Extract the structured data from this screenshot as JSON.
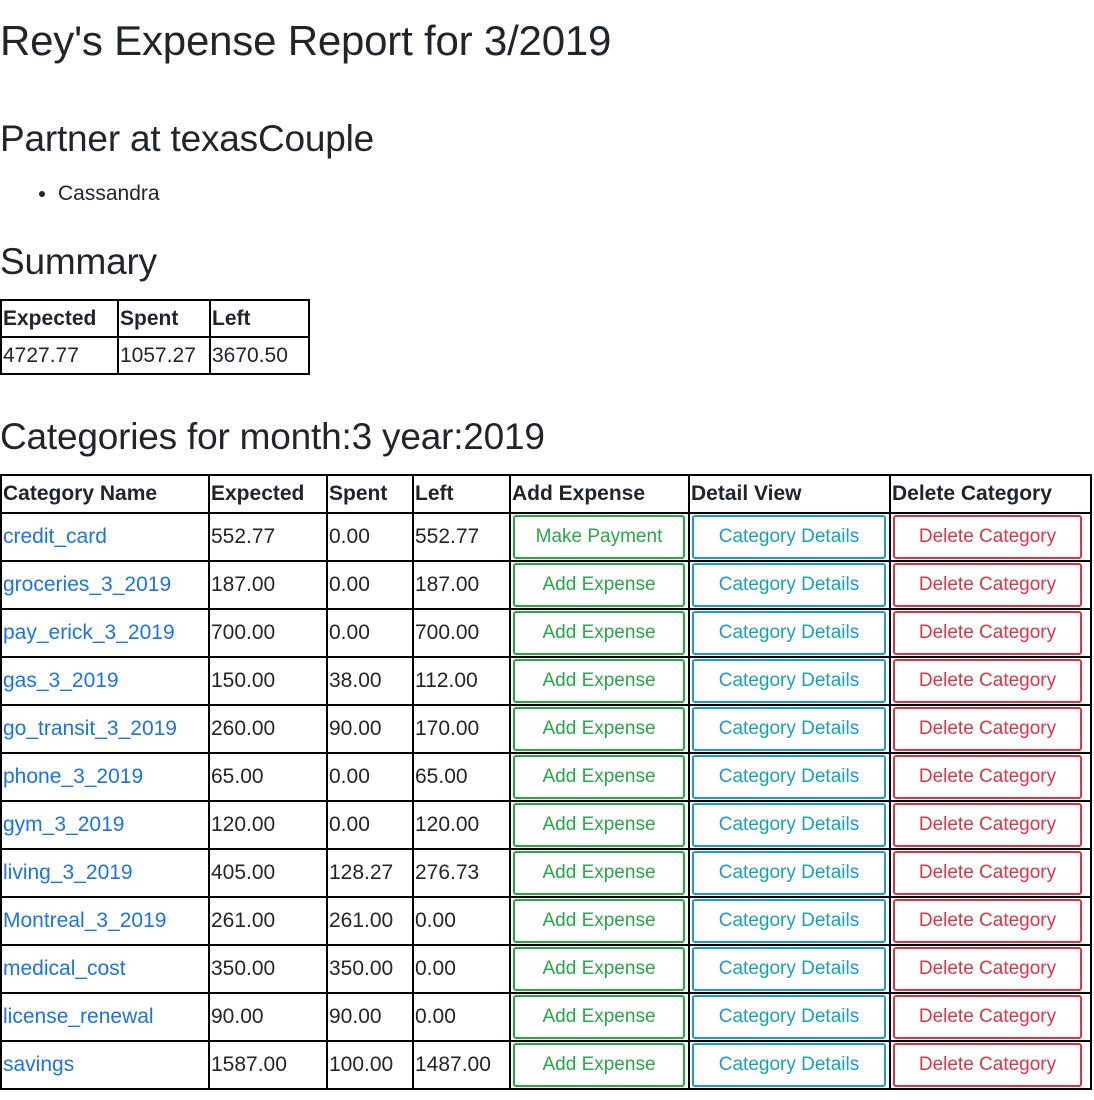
{
  "page": {
    "title": "Rey's Expense Report for 3/2019",
    "partner_heading": "Partner at texasCouple",
    "partners": [
      "Cassandra"
    ],
    "summary_heading": "Summary",
    "categories_heading": "Categories for month:3 year:2019"
  },
  "summary": {
    "headers": [
      "Expected",
      "Spent",
      "Left"
    ],
    "values": [
      "4727.77",
      "1057.27",
      "3670.50"
    ]
  },
  "categories": {
    "headers": [
      "Category Name",
      "Expected",
      "Spent",
      "Left",
      "Add Expense",
      "Detail View",
      "Delete Category"
    ],
    "rows": [
      {
        "name": "credit_card",
        "expected": "552.77",
        "spent": "0.00",
        "left": "552.77",
        "add_label": "Make Payment",
        "detail_label": "Category Details",
        "delete_label": "Delete Category"
      },
      {
        "name": "groceries_3_2019",
        "expected": "187.00",
        "spent": "0.00",
        "left": "187.00",
        "add_label": "Add Expense",
        "detail_label": "Category Details",
        "delete_label": "Delete Category"
      },
      {
        "name": "pay_erick_3_2019",
        "expected": "700.00",
        "spent": "0.00",
        "left": "700.00",
        "add_label": "Add Expense",
        "detail_label": "Category Details",
        "delete_label": "Delete Category"
      },
      {
        "name": "gas_3_2019",
        "expected": "150.00",
        "spent": "38.00",
        "left": "112.00",
        "add_label": "Add Expense",
        "detail_label": "Category Details",
        "delete_label": "Delete Category"
      },
      {
        "name": "go_transit_3_2019",
        "expected": "260.00",
        "spent": "90.00",
        "left": "170.00",
        "add_label": "Add Expense",
        "detail_label": "Category Details",
        "delete_label": "Delete Category"
      },
      {
        "name": "phone_3_2019",
        "expected": "65.00",
        "spent": "0.00",
        "left": "65.00",
        "add_label": "Add Expense",
        "detail_label": "Category Details",
        "delete_label": "Delete Category"
      },
      {
        "name": "gym_3_2019",
        "expected": "120.00",
        "spent": "0.00",
        "left": "120.00",
        "add_label": "Add Expense",
        "detail_label": "Category Details",
        "delete_label": "Delete Category"
      },
      {
        "name": "living_3_2019",
        "expected": "405.00",
        "spent": "128.27",
        "left": "276.73",
        "add_label": "Add Expense",
        "detail_label": "Category Details",
        "delete_label": "Delete Category"
      },
      {
        "name": "Montreal_3_2019",
        "expected": "261.00",
        "spent": "261.00",
        "left": "0.00",
        "add_label": "Add Expense",
        "detail_label": "Category Details",
        "delete_label": "Delete Category"
      },
      {
        "name": "medical_cost",
        "expected": "350.00",
        "spent": "350.00",
        "left": "0.00",
        "add_label": "Add Expense",
        "detail_label": "Category Details",
        "delete_label": "Delete Category"
      },
      {
        "name": "license_renewal",
        "expected": "90.00",
        "spent": "90.00",
        "left": "0.00",
        "add_label": "Add Expense",
        "detail_label": "Category Details",
        "delete_label": "Delete Category"
      },
      {
        "name": "savings",
        "expected": "1587.00",
        "spent": "100.00",
        "left": "1487.00",
        "add_label": "Add Expense",
        "detail_label": "Category Details",
        "delete_label": "Delete Category"
      }
    ]
  },
  "colors": {
    "link": "#1a73e8",
    "success": "#28a745",
    "info": "#17a2b8",
    "danger": "#dc3545",
    "text": "#212529"
  }
}
